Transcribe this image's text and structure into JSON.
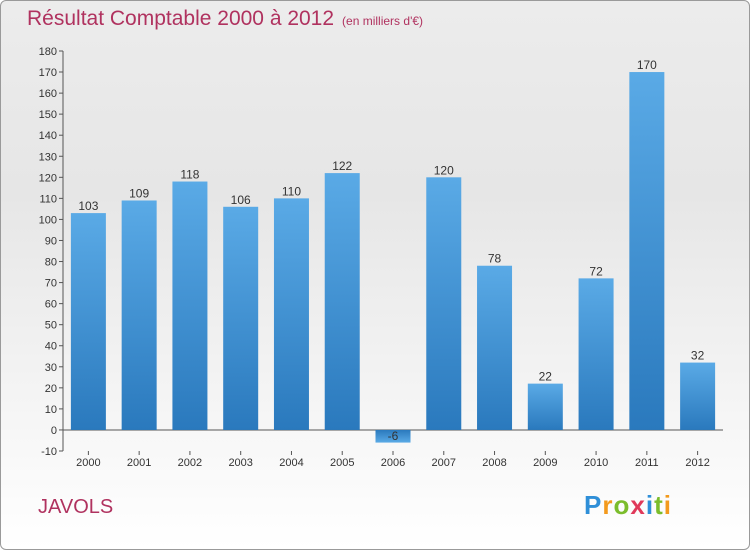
{
  "title": {
    "main": "Résultat Comptable 2000 à 2012",
    "sub": "(en milliers d'€)"
  },
  "commune": "JAVOLS",
  "logo": {
    "letters": [
      {
        "ch": "P",
        "color": "#2f8fd8"
      },
      {
        "ch": "r",
        "color": "#f39a1d"
      },
      {
        "ch": "o",
        "color": "#7bbd2c"
      },
      {
        "ch": "x",
        "color": "#e0395a"
      },
      {
        "ch": "i",
        "color": "#2f8fd8"
      },
      {
        "ch": "t",
        "color": "#7bbd2c"
      },
      {
        "ch": "i",
        "color": "#f39a1d"
      }
    ]
  },
  "chart_data": {
    "type": "bar",
    "categories": [
      "2000",
      "2001",
      "2002",
      "2003",
      "2004",
      "2005",
      "2006",
      "2007",
      "2008",
      "2009",
      "2010",
      "2011",
      "2012"
    ],
    "values": [
      103,
      109,
      118,
      106,
      110,
      122,
      -6,
      120,
      78,
      22,
      72,
      170,
      32
    ],
    "data_labels": [
      "103",
      "109",
      "118",
      "106",
      "110",
      "122",
      "-6",
      "120",
      "78",
      "22",
      "72",
      "170",
      "32"
    ],
    "ylim": [
      -10,
      180
    ],
    "yticks": [
      -10,
      0,
      10,
      20,
      30,
      40,
      50,
      60,
      70,
      80,
      90,
      100,
      110,
      120,
      130,
      140,
      150,
      160,
      170,
      180
    ],
    "grid": false,
    "legend": "none",
    "bar_color": "#4fa0e0",
    "bar_color_dark": "#2a79bd"
  }
}
